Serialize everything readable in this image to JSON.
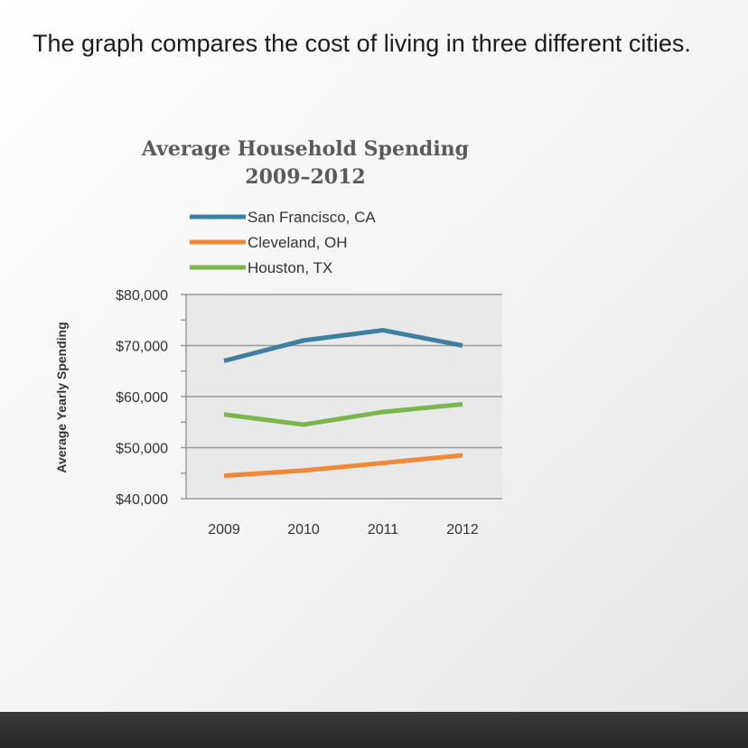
{
  "question": {
    "text": "The graph compares the cost of living in three different cities."
  },
  "chart_data": {
    "type": "line",
    "title_line1": "Average Household Spending",
    "title_line2": "2009–2012",
    "xlabel": "",
    "ylabel": "Average Yearly Spending",
    "x": [
      2009,
      2010,
      2011,
      2012
    ],
    "x_tick_labels": [
      "2009",
      "2010",
      "2011",
      "2012"
    ],
    "ylim": [
      40000,
      80000
    ],
    "y_ticks": [
      40000,
      50000,
      60000,
      70000,
      80000
    ],
    "y_tick_labels": [
      "$40,000",
      "$50,000",
      "$60,000",
      "$70,000",
      "$80,000"
    ],
    "grid": true,
    "legend_position": "top",
    "series": [
      {
        "name": "San Francisco, CA",
        "color": "#3d7fa0",
        "values": [
          67000,
          71000,
          73000,
          70000
        ]
      },
      {
        "name": "Cleveland, OH",
        "color": "#f0883a",
        "values": [
          44500,
          45500,
          47000,
          48500
        ]
      },
      {
        "name": "Houston, TX",
        "color": "#7ab648",
        "values": [
          56500,
          54500,
          57000,
          58500
        ]
      }
    ]
  }
}
